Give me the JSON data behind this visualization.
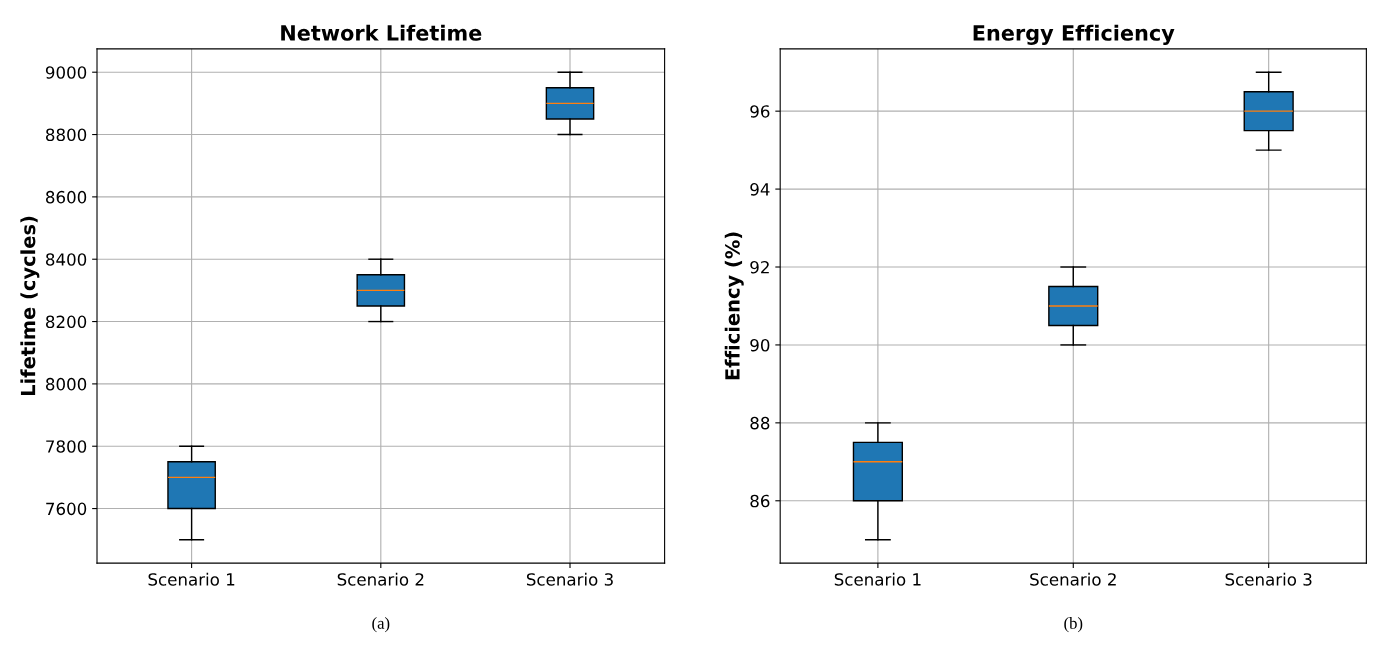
{
  "chart_data": [
    {
      "type": "box",
      "title": "Network Lifetime",
      "ylabel": "Lifetime (cycles)",
      "categories": [
        "Scenario 1",
        "Scenario 2",
        "Scenario 3"
      ],
      "color": "#1f77b4",
      "boxes": [
        {
          "low": 7500,
          "q1": 7600,
          "median": 7700,
          "q3": 7750,
          "high": 7800
        },
        {
          "low": 8200,
          "q1": 8250,
          "median": 8300,
          "q3": 8350,
          "high": 8400
        },
        {
          "low": 8800,
          "q1": 8850,
          "median": 8900,
          "q3": 8950,
          "high": 9000
        }
      ],
      "ylim": [
        7425,
        9075
      ],
      "yticks": [
        7600,
        7800,
        8000,
        8200,
        8400,
        8600,
        8800,
        9000
      ],
      "grid": true,
      "annotations": [
        "(a)"
      ]
    },
    {
      "type": "box",
      "title": "Energy Efficiency",
      "ylabel": "Efficiency (%)",
      "categories": [
        "Scenario 1",
        "Scenario 2",
        "Scenario 3"
      ],
      "color": "#1f77b4",
      "boxes": [
        {
          "low": 85,
          "q1": 86,
          "median": 87,
          "q3": 87.5,
          "high": 88
        },
        {
          "low": 90,
          "q1": 90.5,
          "median": 91,
          "q3": 91.5,
          "high": 92
        },
        {
          "low": 95,
          "q1": 95.5,
          "median": 96,
          "q3": 96.5,
          "high": 97
        }
      ],
      "ylim": [
        84.4,
        97.6
      ],
      "yticks": [
        86,
        88,
        90,
        92,
        94,
        96
      ],
      "grid": true,
      "annotations": [
        "(b)"
      ]
    }
  ]
}
